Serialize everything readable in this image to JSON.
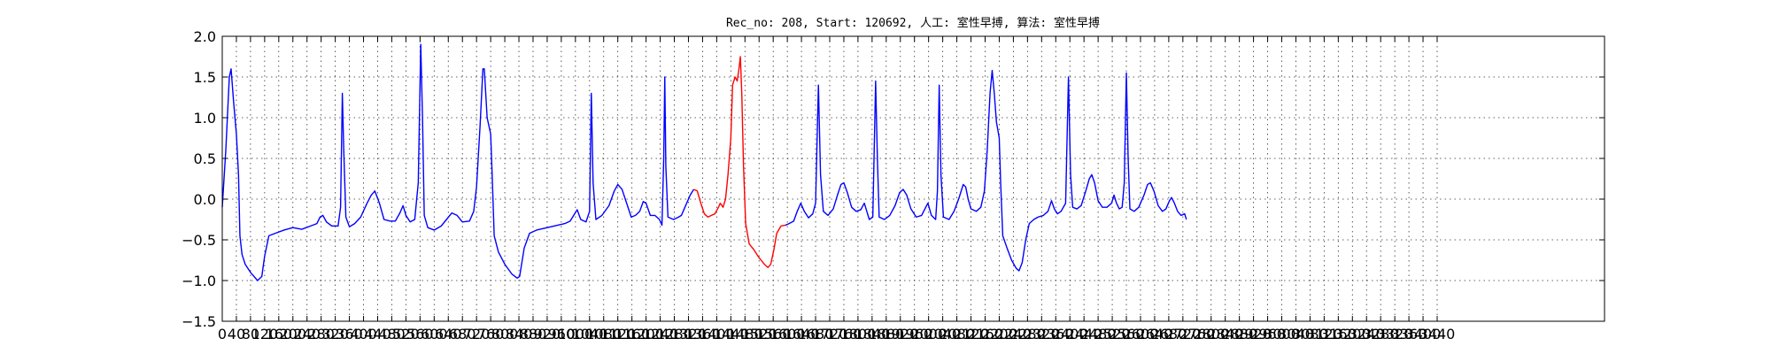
{
  "chart_data": {
    "type": "line",
    "title": "Rec_no: 208, Start: 120692, 人工: 室性早搏, 算法: 室性早搏",
    "xlabel": "",
    "ylabel": "",
    "xlim": [
      0,
      3440
    ],
    "ylim": [
      -1.5,
      2.0
    ],
    "grid": true,
    "yticks": [
      2.0,
      1.5,
      1.0,
      0.5,
      0.0,
      -0.5,
      -1.0,
      -1.5
    ],
    "ytick_labels": [
      "2.0",
      "1.5",
      "1.0",
      "0.5",
      "0.0",
      "−0.5",
      "−1.0",
      "−1.5"
    ],
    "xticks": [
      0,
      40,
      80,
      120,
      160,
      200,
      240,
      280,
      320,
      360,
      400,
      440,
      480,
      520,
      560,
      600,
      640,
      680,
      720,
      760,
      800,
      840,
      880,
      920,
      960,
      1000,
      1040,
      1080,
      1120,
      1160,
      1200,
      1240,
      1280,
      1320,
      1360,
      1400,
      1440,
      1480,
      1520,
      1560,
      1600,
      1640,
      1680,
      1720,
      1760,
      1800,
      1840,
      1880,
      1920,
      1960,
      2000,
      2040,
      2080,
      2120,
      2160,
      2200,
      2240,
      2280,
      2320,
      2360,
      2400,
      2440,
      2480,
      2520,
      2560,
      2600,
      2640,
      2680,
      2720,
      2760,
      2800,
      2840,
      2880,
      2920,
      2960,
      3000,
      3040,
      3080,
      3120,
      3160,
      3200,
      3240,
      3280,
      3320,
      3360,
      3400,
      3440
    ],
    "xtick_labels": [
      "0",
      "40",
      "80",
      "120",
      "160",
      "200",
      "240",
      "280",
      "320",
      "360",
      "400",
      "440",
      "480",
      "520",
      "560",
      "600",
      "640",
      "680",
      "720",
      "760",
      "800",
      "840",
      "880",
      "920",
      "960",
      "1000",
      "1040",
      "1080",
      "1120",
      "1160",
      "1200",
      "1240",
      "1280",
      "1320",
      "1360",
      "1400",
      "1440",
      "1480",
      "1520",
      "1560",
      "1600",
      "1640",
      "1680",
      "1720",
      "1760",
      "1800",
      "1840",
      "1880",
      "1920",
      "1960",
      "2000",
      "2040",
      "2080",
      "2120",
      "2160",
      "2200",
      "2240",
      "2280",
      "2320",
      "2360",
      "2400",
      "2440",
      "2480",
      "2520",
      "2560",
      "2600",
      "2640",
      "2680",
      "2720",
      "2760",
      "2800",
      "2840",
      "2880",
      "2920",
      "2960",
      "3000",
      "3040",
      "3080",
      "3120",
      "3160",
      "3200",
      "3240",
      "3280",
      "3320",
      "3360",
      "3400",
      "3440"
    ],
    "series": [
      {
        "color": "#0000ff",
        "points": [
          [
            0,
            -0.1
          ],
          [
            10,
            0.6
          ],
          [
            20,
            1.5
          ],
          [
            25,
            1.6
          ],
          [
            32,
            1.2
          ],
          [
            40,
            0.8
          ],
          [
            46,
            0.3
          ],
          [
            50,
            -0.45
          ],
          [
            56,
            -0.68
          ],
          [
            65,
            -0.8
          ],
          [
            80,
            -0.9
          ],
          [
            100,
            -1.0
          ],
          [
            112,
            -0.95
          ],
          [
            120,
            -0.7
          ],
          [
            132,
            -0.45
          ],
          [
            150,
            -0.42
          ],
          [
            175,
            -0.38
          ],
          [
            200,
            -0.35
          ],
          [
            225,
            -0.37
          ],
          [
            250,
            -0.33
          ],
          [
            268,
            -0.3
          ],
          [
            277,
            -0.22
          ],
          [
            285,
            -0.2
          ],
          [
            295,
            -0.28
          ],
          [
            310,
            -0.33
          ],
          [
            328,
            -0.33
          ],
          [
            335,
            -0.1
          ],
          [
            340,
            1.3
          ],
          [
            344,
            0.6
          ],
          [
            350,
            -0.22
          ],
          [
            360,
            -0.34
          ],
          [
            375,
            -0.3
          ],
          [
            392,
            -0.22
          ],
          [
            410,
            -0.05
          ],
          [
            422,
            0.05
          ],
          [
            432,
            0.1
          ],
          [
            445,
            -0.05
          ],
          [
            458,
            -0.25
          ],
          [
            475,
            -0.27
          ],
          [
            490,
            -0.27
          ],
          [
            503,
            -0.17
          ],
          [
            512,
            -0.08
          ],
          [
            520,
            -0.2
          ],
          [
            532,
            -0.28
          ],
          [
            545,
            -0.25
          ],
          [
            555,
            0.2
          ],
          [
            562,
            1.9
          ],
          [
            567,
            1.0
          ],
          [
            572,
            -0.2
          ],
          [
            582,
            -0.35
          ],
          [
            600,
            -0.38
          ],
          [
            620,
            -0.33
          ],
          [
            635,
            -0.25
          ],
          [
            650,
            -0.17
          ],
          [
            665,
            -0.2
          ],
          [
            680,
            -0.28
          ],
          [
            700,
            -0.27
          ],
          [
            712,
            -0.15
          ],
          [
            720,
            0.15
          ],
          [
            730,
            0.9
          ],
          [
            738,
            1.6
          ],
          [
            742,
            1.6
          ],
          [
            750,
            1.0
          ],
          [
            760,
            0.8
          ],
          [
            765,
            0.2
          ],
          [
            770,
            -0.45
          ],
          [
            782,
            -0.65
          ],
          [
            800,
            -0.8
          ],
          [
            820,
            -0.92
          ],
          [
            835,
            -0.97
          ],
          [
            842,
            -0.95
          ],
          [
            855,
            -0.6
          ],
          [
            870,
            -0.42
          ],
          [
            890,
            -0.38
          ],
          [
            920,
            -0.35
          ],
          [
            950,
            -0.32
          ],
          [
            970,
            -0.3
          ],
          [
            985,
            -0.27
          ],
          [
            995,
            -0.2
          ],
          [
            1005,
            -0.13
          ],
          [
            1015,
            -0.25
          ],
          [
            1030,
            -0.28
          ],
          [
            1040,
            -0.15
          ],
          [
            1045,
            1.3
          ],
          [
            1050,
            0.2
          ],
          [
            1058,
            -0.25
          ],
          [
            1075,
            -0.2
          ],
          [
            1095,
            -0.08
          ],
          [
            1110,
            0.1
          ],
          [
            1120,
            0.18
          ],
          [
            1132,
            0.12
          ],
          [
            1145,
            -0.05
          ],
          [
            1158,
            -0.22
          ],
          [
            1170,
            -0.2
          ],
          [
            1182,
            -0.15
          ],
          [
            1192,
            -0.03
          ],
          [
            1200,
            -0.05
          ],
          [
            1212,
            -0.2
          ],
          [
            1225,
            -0.2
          ],
          [
            1238,
            -0.25
          ],
          [
            1245,
            -0.32
          ],
          [
            1250,
            0.5
          ],
          [
            1253,
            1.5
          ],
          [
            1256,
            0.4
          ],
          [
            1262,
            -0.22
          ],
          [
            1278,
            -0.25
          ],
          [
            1292,
            -0.22
          ],
          [
            1300,
            -0.2
          ],
          [
            1310,
            -0.1
          ],
          [
            1325,
            0.05
          ],
          [
            1335,
            0.12
          ]
        ]
      },
      {
        "color": "#ff0000",
        "points": [
          [
            1335,
            0.12
          ],
          [
            1345,
            0.1
          ],
          [
            1355,
            -0.05
          ],
          [
            1365,
            -0.18
          ],
          [
            1375,
            -0.22
          ],
          [
            1385,
            -0.2
          ],
          [
            1395,
            -0.18
          ],
          [
            1405,
            -0.1
          ],
          [
            1410,
            -0.05
          ],
          [
            1418,
            -0.1
          ],
          [
            1425,
            0.0
          ],
          [
            1432,
            0.3
          ],
          [
            1440,
            0.75
          ],
          [
            1445,
            1.4
          ],
          [
            1452,
            1.5
          ],
          [
            1458,
            1.45
          ],
          [
            1463,
            1.6
          ],
          [
            1467,
            1.75
          ],
          [
            1471,
            1.3
          ],
          [
            1476,
            0.4
          ],
          [
            1482,
            -0.3
          ],
          [
            1492,
            -0.55
          ],
          [
            1505,
            -0.62
          ],
          [
            1520,
            -0.72
          ],
          [
            1535,
            -0.8
          ],
          [
            1545,
            -0.84
          ],
          [
            1553,
            -0.8
          ],
          [
            1562,
            -0.62
          ],
          [
            1570,
            -0.42
          ],
          [
            1582,
            -0.33
          ],
          [
            1595,
            -0.32
          ]
        ]
      },
      {
        "color": "#0000ff",
        "points": [
          [
            1595,
            -0.32
          ],
          [
            1605,
            -0.3
          ],
          [
            1618,
            -0.27
          ],
          [
            1628,
            -0.15
          ],
          [
            1638,
            -0.05
          ],
          [
            1648,
            -0.15
          ],
          [
            1660,
            -0.23
          ],
          [
            1672,
            -0.18
          ],
          [
            1680,
            -0.05
          ],
          [
            1688,
            1.4
          ],
          [
            1694,
            0.3
          ],
          [
            1702,
            -0.15
          ],
          [
            1715,
            -0.2
          ],
          [
            1730,
            -0.12
          ],
          [
            1742,
            0.05
          ],
          [
            1752,
            0.18
          ],
          [
            1760,
            0.2
          ],
          [
            1770,
            0.08
          ],
          [
            1782,
            -0.1
          ],
          [
            1795,
            -0.15
          ],
          [
            1808,
            -0.13
          ],
          [
            1818,
            -0.05
          ],
          [
            1825,
            -0.15
          ],
          [
            1832,
            -0.25
          ],
          [
            1842,
            -0.22
          ],
          [
            1845,
            0.4
          ],
          [
            1850,
            1.45
          ],
          [
            1855,
            0.5
          ],
          [
            1860,
            -0.22
          ],
          [
            1875,
            -0.25
          ],
          [
            1890,
            -0.2
          ],
          [
            1905,
            -0.08
          ],
          [
            1918,
            0.08
          ],
          [
            1928,
            0.12
          ],
          [
            1938,
            0.05
          ],
          [
            1950,
            -0.12
          ],
          [
            1965,
            -0.22
          ],
          [
            1980,
            -0.2
          ],
          [
            1992,
            -0.1
          ],
          [
            1998,
            -0.05
          ],
          [
            2008,
            -0.2
          ],
          [
            2020,
            -0.25
          ],
          [
            2025,
            0.1
          ],
          [
            2030,
            1.4
          ],
          [
            2035,
            0.3
          ],
          [
            2042,
            -0.22
          ],
          [
            2058,
            -0.25
          ],
          [
            2072,
            -0.15
          ],
          [
            2085,
            0.0
          ],
          [
            2098,
            0.18
          ],
          [
            2105,
            0.15
          ],
          [
            2112,
            0.0
          ],
          [
            2120,
            -0.12
          ],
          [
            2135,
            -0.15
          ],
          [
            2148,
            -0.1
          ],
          [
            2158,
            0.1
          ],
          [
            2166,
            0.6
          ],
          [
            2174,
            1.3
          ],
          [
            2180,
            1.58
          ],
          [
            2186,
            1.3
          ],
          [
            2192,
            0.95
          ],
          [
            2200,
            0.75
          ],
          [
            2204,
            0.2
          ],
          [
            2210,
            -0.45
          ],
          [
            2222,
            -0.6
          ],
          [
            2235,
            -0.75
          ],
          [
            2248,
            -0.85
          ],
          [
            2256,
            -0.88
          ],
          [
            2265,
            -0.78
          ],
          [
            2275,
            -0.5
          ],
          [
            2285,
            -0.3
          ],
          [
            2298,
            -0.25
          ],
          [
            2310,
            -0.22
          ],
          [
            2325,
            -0.2
          ],
          [
            2338,
            -0.15
          ],
          [
            2348,
            -0.02
          ],
          [
            2356,
            -0.12
          ],
          [
            2365,
            -0.18
          ],
          [
            2375,
            -0.15
          ],
          [
            2388,
            -0.05
          ],
          [
            2396,
            1.5
          ],
          [
            2402,
            0.3
          ],
          [
            2408,
            -0.1
          ],
          [
            2420,
            -0.12
          ],
          [
            2432,
            -0.08
          ],
          [
            2445,
            0.1
          ],
          [
            2455,
            0.25
          ],
          [
            2462,
            0.3
          ],
          [
            2470,
            0.2
          ],
          [
            2480,
            -0.02
          ],
          [
            2492,
            -0.1
          ],
          [
            2505,
            -0.1
          ],
          [
            2518,
            -0.05
          ],
          [
            2525,
            0.05
          ],
          [
            2532,
            -0.05
          ],
          [
            2540,
            -0.12
          ],
          [
            2548,
            -0.1
          ],
          [
            2554,
            0.2
          ],
          [
            2560,
            1.55
          ],
          [
            2565,
            0.5
          ],
          [
            2570,
            -0.12
          ],
          [
            2582,
            -0.15
          ],
          [
            2595,
            -0.1
          ],
          [
            2610,
            0.05
          ],
          [
            2620,
            0.18
          ],
          [
            2628,
            0.2
          ],
          [
            2638,
            0.1
          ],
          [
            2650,
            -0.08
          ],
          [
            2662,
            -0.15
          ],
          [
            2672,
            -0.12
          ],
          [
            2682,
            -0.02
          ],
          [
            2688,
            0.02
          ],
          [
            2696,
            -0.05
          ],
          [
            2705,
            -0.15
          ],
          [
            2715,
            -0.2
          ],
          [
            2725,
            -0.18
          ],
          [
            2730,
            -0.25
          ]
        ]
      }
    ]
  }
}
